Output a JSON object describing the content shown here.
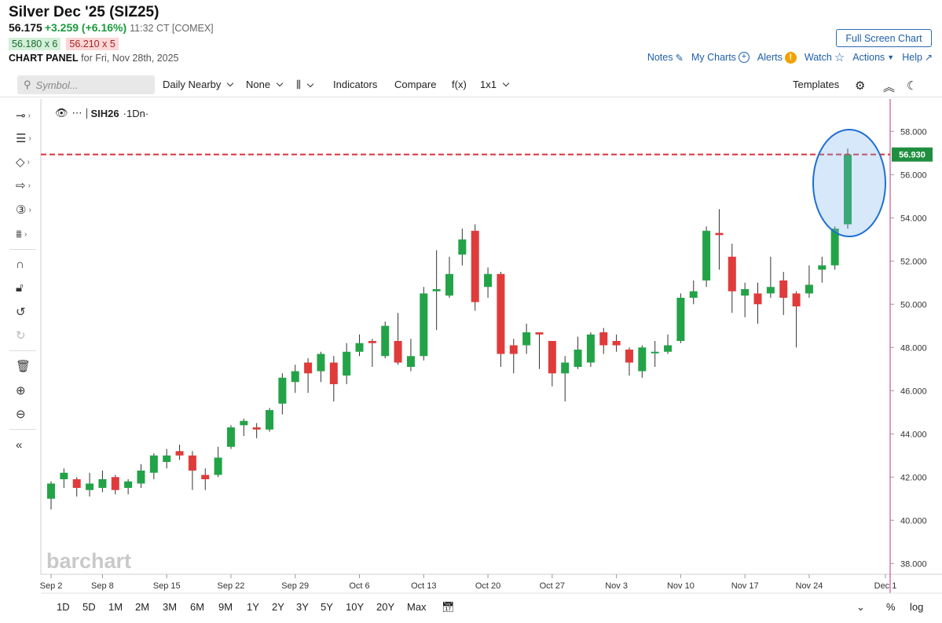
{
  "header": {
    "title": "Silver Dec '25 (SIZ25)",
    "last": "56.175",
    "change": "+3.259 (+6.16%)",
    "time": "11:32 CT [COMEX]",
    "bid": "56.180 x 6",
    "ask": "56.210 x 5",
    "panel_label": "CHART PANEL",
    "panel_date": "for Fri, Nov 28th, 2025"
  },
  "actions": {
    "fullscreen": "Full Screen Chart",
    "notes": "Notes",
    "mycharts": "My Charts",
    "alerts": "Alerts",
    "watch": "Watch",
    "actions": "Actions",
    "help": "Help"
  },
  "toolbar": {
    "symbol_placeholder": "Symbol...",
    "period": "Daily Nearby",
    "compare_mode": "None",
    "indicators": "Indicators",
    "compare": "Compare",
    "fx": "f(x)",
    "layout": "1x1",
    "templates": "Templates"
  },
  "legend": {
    "symbol": "SIH26",
    "interval": "·1Dn·"
  },
  "watermark": "barchart",
  "ranges": [
    "1D",
    "5D",
    "1M",
    "2M",
    "3M",
    "6M",
    "9M",
    "1Y",
    "2Y",
    "3Y",
    "5Y",
    "10Y",
    "20Y",
    "Max"
  ],
  "bottom": {
    "percent": "%",
    "log": "log"
  },
  "colors": {
    "up": "#23a347",
    "down": "#e03b3b",
    "last_price_line": "#d9303a",
    "highlight": "#1f6fd1"
  },
  "chart_data": {
    "type": "candlestick",
    "symbol": "SIH26",
    "ylim": [
      37.5,
      59.5
    ],
    "y_ticks": [
      "38.000",
      "40.000",
      "42.000",
      "44.000",
      "46.000",
      "48.000",
      "50.000",
      "52.000",
      "54.000",
      "56.000",
      "58.000"
    ],
    "x_ticks": [
      "Sep 2",
      "Sep 8",
      "Sep 15",
      "Sep 22",
      "Sep 29",
      "Oct 6",
      "Oct 13",
      "Oct 20",
      "Oct 27",
      "Nov 3",
      "Nov 10",
      "Nov 17",
      "Nov 24",
      "Dec 1"
    ],
    "last_price": 56.93,
    "last_price_label": "56.930",
    "candles": [
      {
        "date": "Sep 2",
        "o": 41.0,
        "h": 41.8,
        "l": 40.5,
        "c": 41.7
      },
      {
        "date": "Sep 3",
        "o": 41.9,
        "h": 42.4,
        "l": 41.5,
        "c": 42.2
      },
      {
        "date": "Sep 4",
        "o": 41.9,
        "h": 42.0,
        "l": 41.1,
        "c": 41.5
      },
      {
        "date": "Sep 5",
        "o": 41.4,
        "h": 42.2,
        "l": 41.1,
        "c": 41.7
      },
      {
        "date": "Sep 8",
        "o": 41.5,
        "h": 42.3,
        "l": 41.3,
        "c": 41.9
      },
      {
        "date": "Sep 9",
        "o": 42.0,
        "h": 42.1,
        "l": 41.2,
        "c": 41.4
      },
      {
        "date": "Sep 10",
        "o": 41.5,
        "h": 41.9,
        "l": 41.2,
        "c": 41.8
      },
      {
        "date": "Sep 11",
        "o": 41.7,
        "h": 42.6,
        "l": 41.5,
        "c": 42.3
      },
      {
        "date": "Sep 12",
        "o": 42.2,
        "h": 43.1,
        "l": 41.9,
        "c": 43.0
      },
      {
        "date": "Sep 15",
        "o": 42.7,
        "h": 43.3,
        "l": 42.4,
        "c": 43.0
      },
      {
        "date": "Sep 16",
        "o": 43.2,
        "h": 43.5,
        "l": 42.8,
        "c": 43.0
      },
      {
        "date": "Sep 17",
        "o": 43.0,
        "h": 43.2,
        "l": 41.4,
        "c": 42.3
      },
      {
        "date": "Sep 18",
        "o": 42.1,
        "h": 42.4,
        "l": 41.4,
        "c": 41.9
      },
      {
        "date": "Sep 19",
        "o": 42.1,
        "h": 43.4,
        "l": 42.0,
        "c": 42.9
      },
      {
        "date": "Sep 22",
        "o": 43.4,
        "h": 44.4,
        "l": 43.3,
        "c": 44.3
      },
      {
        "date": "Sep 23",
        "o": 44.4,
        "h": 44.7,
        "l": 43.9,
        "c": 44.6
      },
      {
        "date": "Sep 24",
        "o": 44.3,
        "h": 44.5,
        "l": 43.8,
        "c": 44.2
      },
      {
        "date": "Sep 25",
        "o": 44.2,
        "h": 45.2,
        "l": 44.1,
        "c": 45.1
      },
      {
        "date": "Sep 26",
        "o": 45.4,
        "h": 46.8,
        "l": 44.9,
        "c": 46.6
      },
      {
        "date": "Sep 29",
        "o": 46.4,
        "h": 47.2,
        "l": 45.9,
        "c": 46.9
      },
      {
        "date": "Sep 30",
        "o": 47.3,
        "h": 47.5,
        "l": 45.9,
        "c": 46.8
      },
      {
        "date": "Oct 1",
        "o": 46.9,
        "h": 47.8,
        "l": 46.4,
        "c": 47.7
      },
      {
        "date": "Oct 2",
        "o": 47.3,
        "h": 47.6,
        "l": 45.5,
        "c": 46.3
      },
      {
        "date": "Oct 3",
        "o": 46.7,
        "h": 48.2,
        "l": 46.3,
        "c": 47.8
      },
      {
        "date": "Oct 6",
        "o": 47.8,
        "h": 48.6,
        "l": 47.6,
        "c": 48.2
      },
      {
        "date": "Oct 7",
        "o": 48.3,
        "h": 48.4,
        "l": 47.1,
        "c": 48.2
      },
      {
        "date": "Oct 8",
        "o": 47.6,
        "h": 49.2,
        "l": 47.5,
        "c": 49.0
      },
      {
        "date": "Oct 9",
        "o": 48.3,
        "h": 49.6,
        "l": 47.2,
        "c": 47.3
      },
      {
        "date": "Oct 10",
        "o": 47.1,
        "h": 48.4,
        "l": 46.9,
        "c": 47.6
      },
      {
        "date": "Oct 13",
        "o": 47.6,
        "h": 50.8,
        "l": 47.4,
        "c": 50.5
      },
      {
        "date": "Oct 14",
        "o": 50.6,
        "h": 52.5,
        "l": 48.8,
        "c": 50.7
      },
      {
        "date": "Oct 15",
        "o": 50.4,
        "h": 52.2,
        "l": 50.3,
        "c": 51.4
      },
      {
        "date": "Oct 16",
        "o": 52.3,
        "h": 53.5,
        "l": 51.8,
        "c": 53.0
      },
      {
        "date": "Oct 17",
        "o": 53.4,
        "h": 53.7,
        "l": 49.7,
        "c": 50.1
      },
      {
        "date": "Oct 20",
        "o": 50.8,
        "h": 51.7,
        "l": 50.3,
        "c": 51.4
      },
      {
        "date": "Oct 21",
        "o": 51.4,
        "h": 51.5,
        "l": 47.1,
        "c": 47.7
      },
      {
        "date": "Oct 22",
        "o": 48.1,
        "h": 48.4,
        "l": 46.8,
        "c": 47.7
      },
      {
        "date": "Oct 23",
        "o": 48.1,
        "h": 49.1,
        "l": 47.7,
        "c": 48.7
      },
      {
        "date": "Oct 24",
        "o": 48.7,
        "h": 48.7,
        "l": 47.0,
        "c": 48.6
      },
      {
        "date": "Oct 27",
        "o": 48.3,
        "h": 48.3,
        "l": 46.2,
        "c": 46.8
      },
      {
        "date": "Oct 28",
        "o": 46.8,
        "h": 47.6,
        "l": 45.5,
        "c": 47.3
      },
      {
        "date": "Oct 29",
        "o": 47.1,
        "h": 48.5,
        "l": 47.0,
        "c": 47.9
      },
      {
        "date": "Oct 30",
        "o": 47.3,
        "h": 48.7,
        "l": 47.1,
        "c": 48.6
      },
      {
        "date": "Oct 31",
        "o": 48.7,
        "h": 48.9,
        "l": 47.7,
        "c": 48.1
      },
      {
        "date": "Nov 3",
        "o": 48.3,
        "h": 48.6,
        "l": 47.8,
        "c": 48.1
      },
      {
        "date": "Nov 4",
        "o": 47.9,
        "h": 48.0,
        "l": 46.7,
        "c": 47.3
      },
      {
        "date": "Nov 5",
        "o": 46.9,
        "h": 48.1,
        "l": 46.6,
        "c": 48.0
      },
      {
        "date": "Nov 6",
        "o": 47.8,
        "h": 48.3,
        "l": 47.1,
        "c": 47.8
      },
      {
        "date": "Nov 7",
        "o": 47.8,
        "h": 48.6,
        "l": 47.7,
        "c": 48.1
      },
      {
        "date": "Nov 10",
        "o": 48.3,
        "h": 50.5,
        "l": 48.2,
        "c": 50.3
      },
      {
        "date": "Nov 11",
        "o": 50.3,
        "h": 51.1,
        "l": 50.0,
        "c": 50.6
      },
      {
        "date": "Nov 12",
        "o": 51.1,
        "h": 53.6,
        "l": 50.8,
        "c": 53.4
      },
      {
        "date": "Nov 13",
        "o": 53.3,
        "h": 54.4,
        "l": 51.6,
        "c": 53.2
      },
      {
        "date": "Nov 14",
        "o": 52.2,
        "h": 52.8,
        "l": 49.6,
        "c": 50.6
      },
      {
        "date": "Nov 17",
        "o": 50.4,
        "h": 51.0,
        "l": 49.4,
        "c": 50.7
      },
      {
        "date": "Nov 18",
        "o": 50.5,
        "h": 51.0,
        "l": 49.1,
        "c": 50.0
      },
      {
        "date": "Nov 19",
        "o": 50.5,
        "h": 52.2,
        "l": 50.3,
        "c": 50.8
      },
      {
        "date": "Nov 20",
        "o": 51.1,
        "h": 51.5,
        "l": 49.5,
        "c": 50.3
      },
      {
        "date": "Nov 21",
        "o": 50.5,
        "h": 50.6,
        "l": 48.0,
        "c": 49.9
      },
      {
        "date": "Nov 24",
        "o": 50.5,
        "h": 51.8,
        "l": 50.3,
        "c": 50.9
      },
      {
        "date": "Nov 25",
        "o": 51.6,
        "h": 52.2,
        "l": 51.0,
        "c": 51.8
      },
      {
        "date": "Nov 26",
        "o": 51.8,
        "h": 53.6,
        "l": 51.6,
        "c": 53.5
      },
      {
        "date": "Nov 28",
        "o": 53.7,
        "h": 57.2,
        "l": 53.5,
        "c": 56.93
      }
    ],
    "grid": false
  }
}
